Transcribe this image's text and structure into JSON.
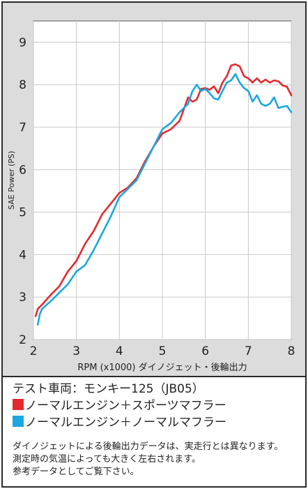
{
  "chart_data": {
    "type": "line",
    "title": "",
    "xlabel": "RPM (x1000) ダイノジェット・後輪出力",
    "ylabel": "SAE Power (PS)",
    "xlim": [
      2,
      8
    ],
    "ylim": [
      2,
      9.5
    ],
    "xticks": [
      2,
      3,
      4,
      5,
      6,
      7,
      8
    ],
    "yticks": [
      2,
      3,
      4,
      5,
      6,
      7,
      8,
      9
    ],
    "grid": true,
    "series": [
      {
        "name": "ノーマルエンジン＋スポーツマフラー",
        "color": "#e32a2f",
        "x": [
          2.05,
          2.1,
          2.2,
          2.4,
          2.6,
          2.8,
          3.0,
          3.2,
          3.4,
          3.6,
          3.8,
          4.0,
          4.2,
          4.4,
          4.6,
          4.8,
          5.0,
          5.2,
          5.4,
          5.6,
          5.7,
          5.8,
          5.9,
          6.0,
          6.1,
          6.2,
          6.3,
          6.4,
          6.5,
          6.6,
          6.7,
          6.8,
          6.9,
          7.0,
          7.1,
          7.2,
          7.3,
          7.4,
          7.5,
          7.6,
          7.7,
          7.8,
          7.9,
          8.0
        ],
        "y": [
          2.55,
          2.72,
          2.82,
          3.05,
          3.25,
          3.6,
          3.85,
          4.25,
          4.55,
          4.95,
          5.2,
          5.45,
          5.58,
          5.8,
          6.2,
          6.55,
          6.85,
          6.95,
          7.15,
          7.7,
          7.6,
          7.65,
          7.9,
          7.92,
          7.88,
          7.96,
          7.8,
          8.05,
          8.2,
          8.45,
          8.48,
          8.43,
          8.2,
          8.15,
          8.05,
          8.15,
          8.05,
          8.12,
          8.05,
          8.1,
          8.08,
          7.98,
          7.95,
          7.75
        ]
      },
      {
        "name": "ノーマルエンジン＋ノーマルマフラー",
        "color": "#1aa7e0",
        "x": [
          2.1,
          2.15,
          2.2,
          2.4,
          2.6,
          2.8,
          3.0,
          3.2,
          3.4,
          3.6,
          3.8,
          4.0,
          4.2,
          4.4,
          4.6,
          4.8,
          5.0,
          5.2,
          5.4,
          5.6,
          5.7,
          5.8,
          5.9,
          6.0,
          6.1,
          6.2,
          6.3,
          6.4,
          6.5,
          6.6,
          6.7,
          6.8,
          6.9,
          7.0,
          7.1,
          7.2,
          7.3,
          7.4,
          7.5,
          7.6,
          7.7,
          7.8,
          7.9,
          8.0
        ],
        "y": [
          2.35,
          2.6,
          2.72,
          2.9,
          3.1,
          3.3,
          3.6,
          3.75,
          4.1,
          4.5,
          4.9,
          5.35,
          5.55,
          5.75,
          6.15,
          6.55,
          6.95,
          7.1,
          7.35,
          7.55,
          7.85,
          8.0,
          7.85,
          7.9,
          7.8,
          7.68,
          7.65,
          7.85,
          8.05,
          8.1,
          8.25,
          8.05,
          7.92,
          7.85,
          7.6,
          7.75,
          7.55,
          7.5,
          7.55,
          7.7,
          7.45,
          7.48,
          7.5,
          7.35
        ]
      }
    ]
  },
  "legend": {
    "vehicle": "テスト車両：モンキー125（JB05）",
    "items": [
      {
        "label": "ノーマルエンジン＋スポーツマフラー",
        "color": "#e32a2f"
      },
      {
        "label": "ノーマルエンジン＋ノーマルマフラー",
        "color": "#1aa7e0"
      }
    ]
  },
  "notes": [
    "ダイノジェットによる後輪出力データは、実走行とは異なります。",
    "測定時の気温によっても大きく左右されます。",
    "参考データとしてご覧下さい。"
  ]
}
